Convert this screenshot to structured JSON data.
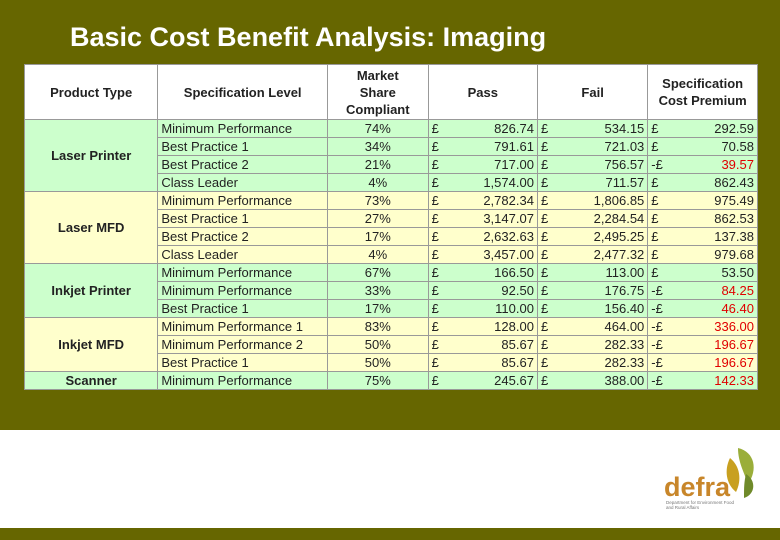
{
  "title": "Basic Cost Benefit Analysis: Imaging",
  "table": {
    "header": [
      "Product Type",
      "Specification Level",
      "Market Share Compliant",
      "Pass",
      "Fail",
      "Specification Cost Premium"
    ],
    "groups": [
      {
        "product": "Laser Printer",
        "rows": [
          {
            "spec": "Minimum Performance",
            "share": "74%",
            "pass": [
              "£",
              "826.74"
            ],
            "fail": [
              "£",
              "534.15"
            ],
            "premium": [
              "£",
              "292.59"
            ]
          },
          {
            "spec": "Best Practice 1",
            "share": "34%",
            "pass": [
              "£",
              "791.61"
            ],
            "fail": [
              "£",
              "721.03"
            ],
            "premium": [
              "£",
              "70.58"
            ]
          },
          {
            "spec": "Best Practice 2",
            "share": "21%",
            "pass": [
              "£",
              "717.00"
            ],
            "fail": [
              "£",
              "756.57"
            ],
            "premium": [
              "-£",
              "39.57"
            ]
          },
          {
            "spec": "Class Leader",
            "share": "4%",
            "pass": [
              "£",
              "1,574.00"
            ],
            "fail": [
              "£",
              "711.57"
            ],
            "premium": [
              "£",
              "862.43"
            ]
          }
        ]
      },
      {
        "product": "Laser MFD",
        "rows": [
          {
            "spec": "Minimum Performance",
            "share": "73%",
            "pass": [
              "£",
              "2,782.34"
            ],
            "fail": [
              "£",
              "1,806.85"
            ],
            "premium": [
              "£",
              "975.49"
            ]
          },
          {
            "spec": "Best Practice 1",
            "share": "27%",
            "pass": [
              "£",
              "3,147.07"
            ],
            "fail": [
              "£",
              "2,284.54"
            ],
            "premium": [
              "£",
              "862.53"
            ]
          },
          {
            "spec": "Best Practice 2",
            "share": "17%",
            "pass": [
              "£",
              "2,632.63"
            ],
            "fail": [
              "£",
              "2,495.25"
            ],
            "premium": [
              "£",
              "137.38"
            ]
          },
          {
            "spec": "Class Leader",
            "share": "4%",
            "pass": [
              "£",
              "3,457.00"
            ],
            "fail": [
              "£",
              "2,477.32"
            ],
            "premium": [
              "£",
              "979.68"
            ]
          }
        ]
      },
      {
        "product": "Inkjet Printer",
        "rows": [
          {
            "spec": "Minimum Performance",
            "share": "67%",
            "pass": [
              "£",
              "166.50"
            ],
            "fail": [
              "£",
              "113.00"
            ],
            "premium": [
              "£",
              "53.50"
            ]
          },
          {
            "spec": "Minimum Performance",
            "share": "33%",
            "pass": [
              "£",
              "92.50"
            ],
            "fail": [
              "£",
              "176.75"
            ],
            "premium": [
              "-£",
              "84.25"
            ]
          },
          {
            "spec": "Best Practice 1",
            "share": "17%",
            "pass": [
              "£",
              "110.00"
            ],
            "fail": [
              "£",
              "156.40"
            ],
            "premium": [
              "-£",
              "46.40"
            ]
          }
        ]
      },
      {
        "product": "Inkjet MFD",
        "rows": [
          {
            "spec": "Minimum Performance 1",
            "share": "83%",
            "pass": [
              "£",
              "128.00"
            ],
            "fail": [
              "£",
              "464.00"
            ],
            "premium": [
              "-£",
              "336.00"
            ]
          },
          {
            "spec": "Minimum Performance 2",
            "share": "50%",
            "pass": [
              "£",
              "85.67"
            ],
            "fail": [
              "£",
              "282.33"
            ],
            "premium": [
              "-£",
              "196.67"
            ]
          },
          {
            "spec": "Best Practice 1",
            "share": "50%",
            "pass": [
              "£",
              "85.67"
            ],
            "fail": [
              "£",
              "282.33"
            ],
            "premium": [
              "-£",
              "196.67"
            ]
          }
        ]
      },
      {
        "product": "Scanner",
        "rows": [
          {
            "spec": "Minimum Performance",
            "share": "75%",
            "pass": [
              "£",
              "245.67"
            ],
            "fail": [
              "£",
              "388.00"
            ],
            "premium": [
              "-£",
              "142.33"
            ]
          }
        ]
      }
    ]
  },
  "logo": {
    "name": "defra",
    "tagline": "Department for Environment Food and Rural Affairs"
  }
}
